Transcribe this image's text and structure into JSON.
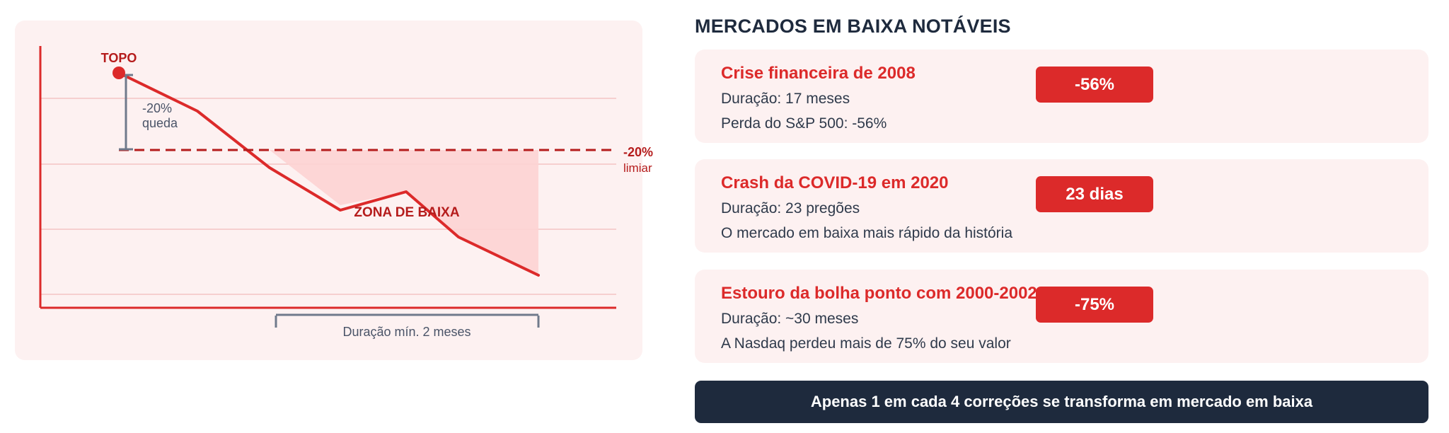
{
  "diagram": {
    "peak_label": "TOPO",
    "drop_label_line1": "-20%",
    "drop_label_line2": "queda",
    "threshold_label_line1": "-20%",
    "threshold_label_line2": "limiar",
    "zone_label": "ZONA DE BAIXA",
    "duration_label": "Duração mín. 2 meses",
    "colors": {
      "accent": "#dc2a2a",
      "dark_red": "#b51c1c",
      "zone_fill": "#fdd3d3",
      "grid": "#f6cfcf",
      "axis": "#dc2a2a",
      "bracket": "#707a8c"
    }
  },
  "section_title": "MERCADOS EM BAIXA NOTÁVEIS",
  "cards": [
    {
      "title": "Crise financeira de 2008",
      "line1": "Duração: 17 meses",
      "line2": "Perda do S&P 500: -56%",
      "badge": "-56%"
    },
    {
      "title": "Crash da COVID-19 em 2020",
      "line1": "Duração: 23 pregões",
      "line2": "O mercado em baixa mais rápido da história",
      "badge": "23 dias"
    },
    {
      "title": "Estouro da bolha ponto com 2000-2002",
      "line1": "Duração: ~30 meses",
      "line2": "A Nasdaq perdeu mais de 75% do seu valor",
      "badge": "-75%"
    }
  ],
  "footer": "Apenas 1 em cada 4 correções se transforma em mercado em baixa"
}
